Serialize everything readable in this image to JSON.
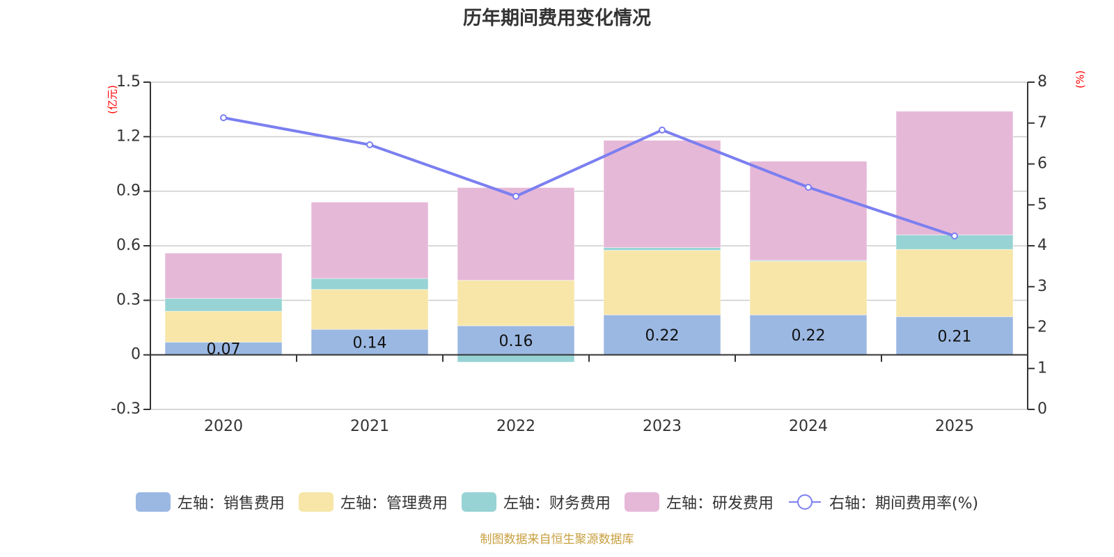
{
  "title": "历年期间费用变化情况",
  "footer": "制图数据来自恒生聚源数据库",
  "legend": [
    {
      "label": "左轴：销售费用",
      "type": "bar",
      "color": "#9bb8e2"
    },
    {
      "label": "左轴：管理费用",
      "type": "bar",
      "color": "#f7e6a8"
    },
    {
      "label": "左轴：财务费用",
      "type": "bar",
      "color": "#97d3d4"
    },
    {
      "label": "左轴：研发费用",
      "type": "bar",
      "color": "#e6b8d8"
    },
    {
      "label": "右轴：期间费用率(%)",
      "type": "line",
      "color": "#7b7ff0"
    }
  ],
  "chart_data": {
    "type": "bar",
    "stacked": true,
    "title": "历年期间费用变化情况",
    "categories": [
      "2020",
      "2021",
      "2022",
      "2023",
      "2024",
      "2025"
    ],
    "left_axis": {
      "label": "(亿元)",
      "ylim": [
        -0.3,
        1.5
      ],
      "ticks": [
        "-0.3",
        "0",
        "0.3",
        "0.6",
        "0.9",
        "1.2",
        "1.5"
      ],
      "tick_values": [
        -0.3,
        0,
        0.3,
        0.6,
        0.9,
        1.2,
        1.5
      ]
    },
    "right_axis": {
      "label": "(%)",
      "ylim": [
        0,
        8
      ],
      "ticks": [
        "0",
        "1",
        "2",
        "3",
        "4",
        "5",
        "6",
        "7",
        "8"
      ],
      "tick_values": [
        0,
        1,
        2,
        3,
        4,
        5,
        6,
        7,
        8
      ]
    },
    "grid": true,
    "legend_position": "bottom",
    "series": [
      {
        "name": "左轴：销售费用",
        "axis": "left",
        "type": "bar",
        "color": "#9bb8e2",
        "values": [
          0.07,
          0.14,
          0.16,
          0.22,
          0.22,
          0.21
        ],
        "labels": [
          "0.07",
          "0.14",
          "0.16",
          "0.22",
          "0.22",
          "0.21"
        ]
      },
      {
        "name": "左轴：管理费用",
        "axis": "left",
        "type": "bar",
        "color": "#f7e6a8",
        "values": [
          0.17,
          0.22,
          0.25,
          0.355,
          0.295,
          0.37
        ]
      },
      {
        "name": "左轴：财务费用",
        "axis": "left",
        "type": "bar",
        "color": "#97d3d4",
        "values": [
          0.07,
          0.06,
          -0.04,
          0.015,
          0.005,
          0.08
        ]
      },
      {
        "name": "左轴：研发费用",
        "axis": "left",
        "type": "bar",
        "color": "#e6b8d8",
        "values": [
          0.25,
          0.42,
          0.51,
          0.59,
          0.545,
          0.68
        ]
      },
      {
        "name": "右轴：期间费用率(%)",
        "axis": "right",
        "type": "line",
        "color": "#7b7ff0",
        "values": [
          7.13,
          6.47,
          5.21,
          6.83,
          5.43,
          4.24
        ]
      }
    ]
  }
}
